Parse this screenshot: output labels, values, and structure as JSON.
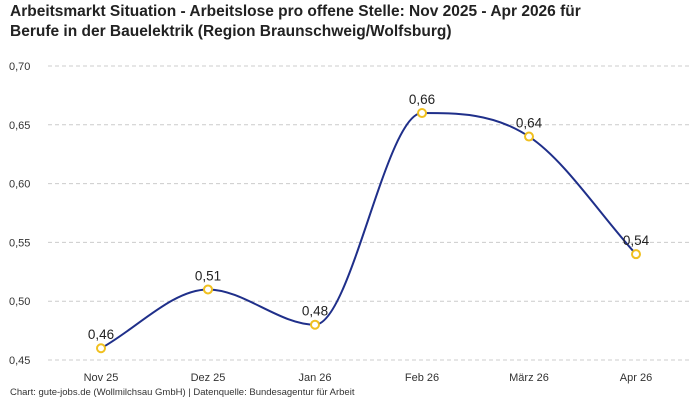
{
  "title_line1": "Arbeitsmarkt Situation - Arbeitslose pro offene Stelle: Nov 2025 - Apr 2026 für",
  "title_line2": "Berufe in der Bauelektrik (Region Braunschweig/Wolfsburg)",
  "footer": "Chart: gute-jobs.de (Wollmilchsau GmbH) | Datenquelle: Bundesagentur für Arbeit",
  "colors": {
    "line": "#1f2f8a",
    "marker": "#f0c020",
    "grid": "#cccccc"
  },
  "chart_data": {
    "type": "line",
    "categories": [
      "Nov 25",
      "Dez 25",
      "Jan 26",
      "Feb 26",
      "März 26",
      "Apr 26"
    ],
    "values": [
      0.46,
      0.51,
      0.48,
      0.66,
      0.64,
      0.54
    ],
    "data_labels": [
      "0,46",
      "0,51",
      "0,48",
      "0,66",
      "0,64",
      "0,54"
    ],
    "y_ticks": [
      "0,45",
      "0,50",
      "0,55",
      "0,60",
      "0,65",
      "0,70"
    ],
    "y_tick_values": [
      0.45,
      0.5,
      0.55,
      0.6,
      0.65,
      0.7
    ],
    "ylim": [
      0.45,
      0.7
    ],
    "grid": true,
    "smooth": true
  }
}
